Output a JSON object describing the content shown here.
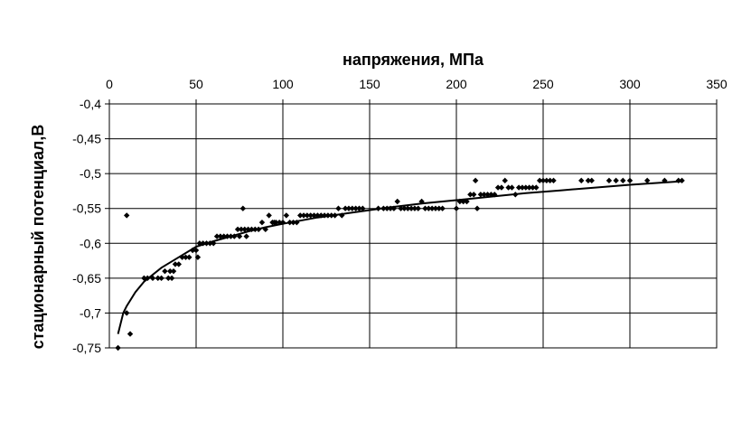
{
  "chart_data": {
    "type": "scatter",
    "xlabel": "напряжения, МПа",
    "ylabel": "стационарный потенциал,В",
    "xlim": [
      0,
      350
    ],
    "ylim": [
      -0.75,
      -0.4
    ],
    "x_ticks": [
      0,
      50,
      100,
      150,
      200,
      250,
      300,
      350
    ],
    "y_ticks": [
      -0.4,
      -0.45,
      -0.5,
      -0.55,
      -0.6,
      -0.65,
      -0.7,
      -0.75
    ],
    "y_tick_labels": [
      "-0,4",
      "-0,45",
      "-0,5",
      "-0,55",
      "-0,6",
      "-0,65",
      "-0,7",
      "-0,75"
    ],
    "x_axis_position": "top",
    "grid": true,
    "legend": "none",
    "series": [
      {
        "marker": "diamond",
        "color": "#000000",
        "points": [
          [
            5,
            -0.75
          ],
          [
            10,
            -0.56
          ],
          [
            12,
            -0.73
          ],
          [
            10,
            -0.7
          ],
          [
            20,
            -0.65
          ],
          [
            22,
            -0.65
          ],
          [
            25,
            -0.65
          ],
          [
            28,
            -0.65
          ],
          [
            30,
            -0.65
          ],
          [
            32,
            -0.64
          ],
          [
            34,
            -0.65
          ],
          [
            35,
            -0.64
          ],
          [
            36,
            -0.65
          ],
          [
            37,
            -0.64
          ],
          [
            38,
            -0.63
          ],
          [
            40,
            -0.63
          ],
          [
            42,
            -0.62
          ],
          [
            44,
            -0.62
          ],
          [
            46,
            -0.62
          ],
          [
            48,
            -0.61
          ],
          [
            50,
            -0.61
          ],
          [
            51,
            -0.62
          ],
          [
            52,
            -0.6
          ],
          [
            54,
            -0.6
          ],
          [
            56,
            -0.6
          ],
          [
            58,
            -0.6
          ],
          [
            60,
            -0.6
          ],
          [
            62,
            -0.59
          ],
          [
            64,
            -0.59
          ],
          [
            66,
            -0.59
          ],
          [
            68,
            -0.59
          ],
          [
            70,
            -0.59
          ],
          [
            72,
            -0.59
          ],
          [
            74,
            -0.58
          ],
          [
            75,
            -0.59
          ],
          [
            76,
            -0.58
          ],
          [
            77,
            -0.55
          ],
          [
            78,
            -0.58
          ],
          [
            79,
            -0.59
          ],
          [
            80,
            -0.58
          ],
          [
            82,
            -0.58
          ],
          [
            84,
            -0.58
          ],
          [
            86,
            -0.58
          ],
          [
            88,
            -0.57
          ],
          [
            90,
            -0.58
          ],
          [
            92,
            -0.56
          ],
          [
            94,
            -0.57
          ],
          [
            95,
            -0.57
          ],
          [
            96,
            -0.57
          ],
          [
            98,
            -0.57
          ],
          [
            100,
            -0.57
          ],
          [
            102,
            -0.56
          ],
          [
            104,
            -0.57
          ],
          [
            106,
            -0.57
          ],
          [
            108,
            -0.57
          ],
          [
            110,
            -0.56
          ],
          [
            112,
            -0.56
          ],
          [
            114,
            -0.56
          ],
          [
            116,
            -0.56
          ],
          [
            118,
            -0.56
          ],
          [
            120,
            -0.56
          ],
          [
            122,
            -0.56
          ],
          [
            124,
            -0.56
          ],
          [
            126,
            -0.56
          ],
          [
            128,
            -0.56
          ],
          [
            130,
            -0.56
          ],
          [
            132,
            -0.55
          ],
          [
            134,
            -0.56
          ],
          [
            136,
            -0.55
          ],
          [
            138,
            -0.55
          ],
          [
            140,
            -0.55
          ],
          [
            142,
            -0.55
          ],
          [
            144,
            -0.55
          ],
          [
            146,
            -0.55
          ],
          [
            155,
            -0.55
          ],
          [
            158,
            -0.55
          ],
          [
            160,
            -0.55
          ],
          [
            162,
            -0.55
          ],
          [
            164,
            -0.55
          ],
          [
            166,
            -0.54
          ],
          [
            168,
            -0.55
          ],
          [
            170,
            -0.55
          ],
          [
            172,
            -0.55
          ],
          [
            174,
            -0.55
          ],
          [
            176,
            -0.55
          ],
          [
            178,
            -0.55
          ],
          [
            180,
            -0.54
          ],
          [
            182,
            -0.55
          ],
          [
            184,
            -0.55
          ],
          [
            186,
            -0.55
          ],
          [
            188,
            -0.55
          ],
          [
            190,
            -0.55
          ],
          [
            192,
            -0.55
          ],
          [
            200,
            -0.55
          ],
          [
            202,
            -0.54
          ],
          [
            204,
            -0.54
          ],
          [
            206,
            -0.54
          ],
          [
            208,
            -0.53
          ],
          [
            210,
            -0.53
          ],
          [
            211,
            -0.51
          ],
          [
            212,
            -0.55
          ],
          [
            214,
            -0.53
          ],
          [
            216,
            -0.53
          ],
          [
            218,
            -0.53
          ],
          [
            220,
            -0.53
          ],
          [
            222,
            -0.53
          ],
          [
            224,
            -0.52
          ],
          [
            226,
            -0.52
          ],
          [
            228,
            -0.51
          ],
          [
            230,
            -0.52
          ],
          [
            232,
            -0.52
          ],
          [
            234,
            -0.53
          ],
          [
            236,
            -0.52
          ],
          [
            238,
            -0.52
          ],
          [
            240,
            -0.52
          ],
          [
            242,
            -0.52
          ],
          [
            244,
            -0.52
          ],
          [
            246,
            -0.52
          ],
          [
            248,
            -0.51
          ],
          [
            250,
            -0.51
          ],
          [
            252,
            -0.51
          ],
          [
            254,
            -0.51
          ],
          [
            256,
            -0.51
          ],
          [
            272,
            -0.51
          ],
          [
            276,
            -0.51
          ],
          [
            278,
            -0.51
          ],
          [
            288,
            -0.51
          ],
          [
            292,
            -0.51
          ],
          [
            296,
            -0.51
          ],
          [
            300,
            -0.51
          ],
          [
            310,
            -0.51
          ],
          [
            320,
            -0.51
          ],
          [
            328,
            -0.51
          ],
          [
            330,
            -0.51
          ]
        ]
      }
    ],
    "trendline": {
      "type": "logarithmic",
      "points": [
        [
          5,
          -0.73
        ],
        [
          8,
          -0.7
        ],
        [
          10,
          -0.69
        ],
        [
          15,
          -0.67
        ],
        [
          20,
          -0.655
        ],
        [
          30,
          -0.635
        ],
        [
          40,
          -0.62
        ],
        [
          50,
          -0.605
        ],
        [
          60,
          -0.597
        ],
        [
          70,
          -0.59
        ],
        [
          80,
          -0.583
        ],
        [
          90,
          -0.577
        ],
        [
          100,
          -0.572
        ],
        [
          120,
          -0.563
        ],
        [
          140,
          -0.556
        ],
        [
          160,
          -0.549
        ],
        [
          180,
          -0.543
        ],
        [
          200,
          -0.538
        ],
        [
          220,
          -0.533
        ],
        [
          240,
          -0.528
        ],
        [
          260,
          -0.524
        ],
        [
          280,
          -0.52
        ],
        [
          300,
          -0.516
        ],
        [
          330,
          -0.511
        ]
      ]
    }
  }
}
